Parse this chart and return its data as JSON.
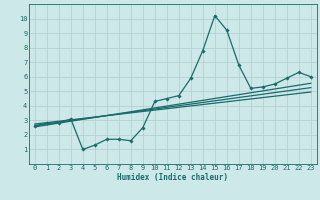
{
  "xlabel": "Humidex (Indice chaleur)",
  "xlim": [
    -0.5,
    23.5
  ],
  "ylim": [
    0,
    11
  ],
  "xticks": [
    0,
    1,
    2,
    3,
    4,
    5,
    6,
    7,
    8,
    9,
    10,
    11,
    12,
    13,
    14,
    15,
    16,
    17,
    18,
    19,
    20,
    21,
    22,
    23
  ],
  "yticks": [
    1,
    2,
    3,
    4,
    5,
    6,
    7,
    8,
    9,
    10
  ],
  "bg_color": "#cce8e8",
  "grid_color": "#b0cccc",
  "line_color": "#1a6b6b",
  "series": [
    [
      0,
      2.6
    ],
    [
      1,
      2.8
    ],
    [
      2,
      2.8
    ],
    [
      3,
      3.1
    ],
    [
      4,
      1.0
    ],
    [
      5,
      1.3
    ],
    [
      6,
      1.7
    ],
    [
      7,
      1.7
    ],
    [
      8,
      1.6
    ],
    [
      9,
      2.5
    ],
    [
      10,
      4.3
    ],
    [
      11,
      4.5
    ],
    [
      12,
      4.7
    ],
    [
      13,
      5.9
    ],
    [
      14,
      7.8
    ],
    [
      15,
      10.2
    ],
    [
      16,
      9.2
    ],
    [
      17,
      6.8
    ],
    [
      18,
      5.2
    ],
    [
      19,
      5.3
    ],
    [
      20,
      5.5
    ],
    [
      21,
      5.9
    ],
    [
      22,
      6.3
    ],
    [
      23,
      6.0
    ]
  ],
  "trend_lines": [
    [
      [
        0,
        2.55
      ],
      [
        23,
        5.55
      ]
    ],
    [
      [
        0,
        2.65
      ],
      [
        23,
        5.25
      ]
    ],
    [
      [
        0,
        2.75
      ],
      [
        23,
        4.95
      ]
    ]
  ],
  "marker_size": 1.8,
  "line_width": 0.9,
  "font_size_tick": 5.0,
  "font_size_label": 5.5
}
